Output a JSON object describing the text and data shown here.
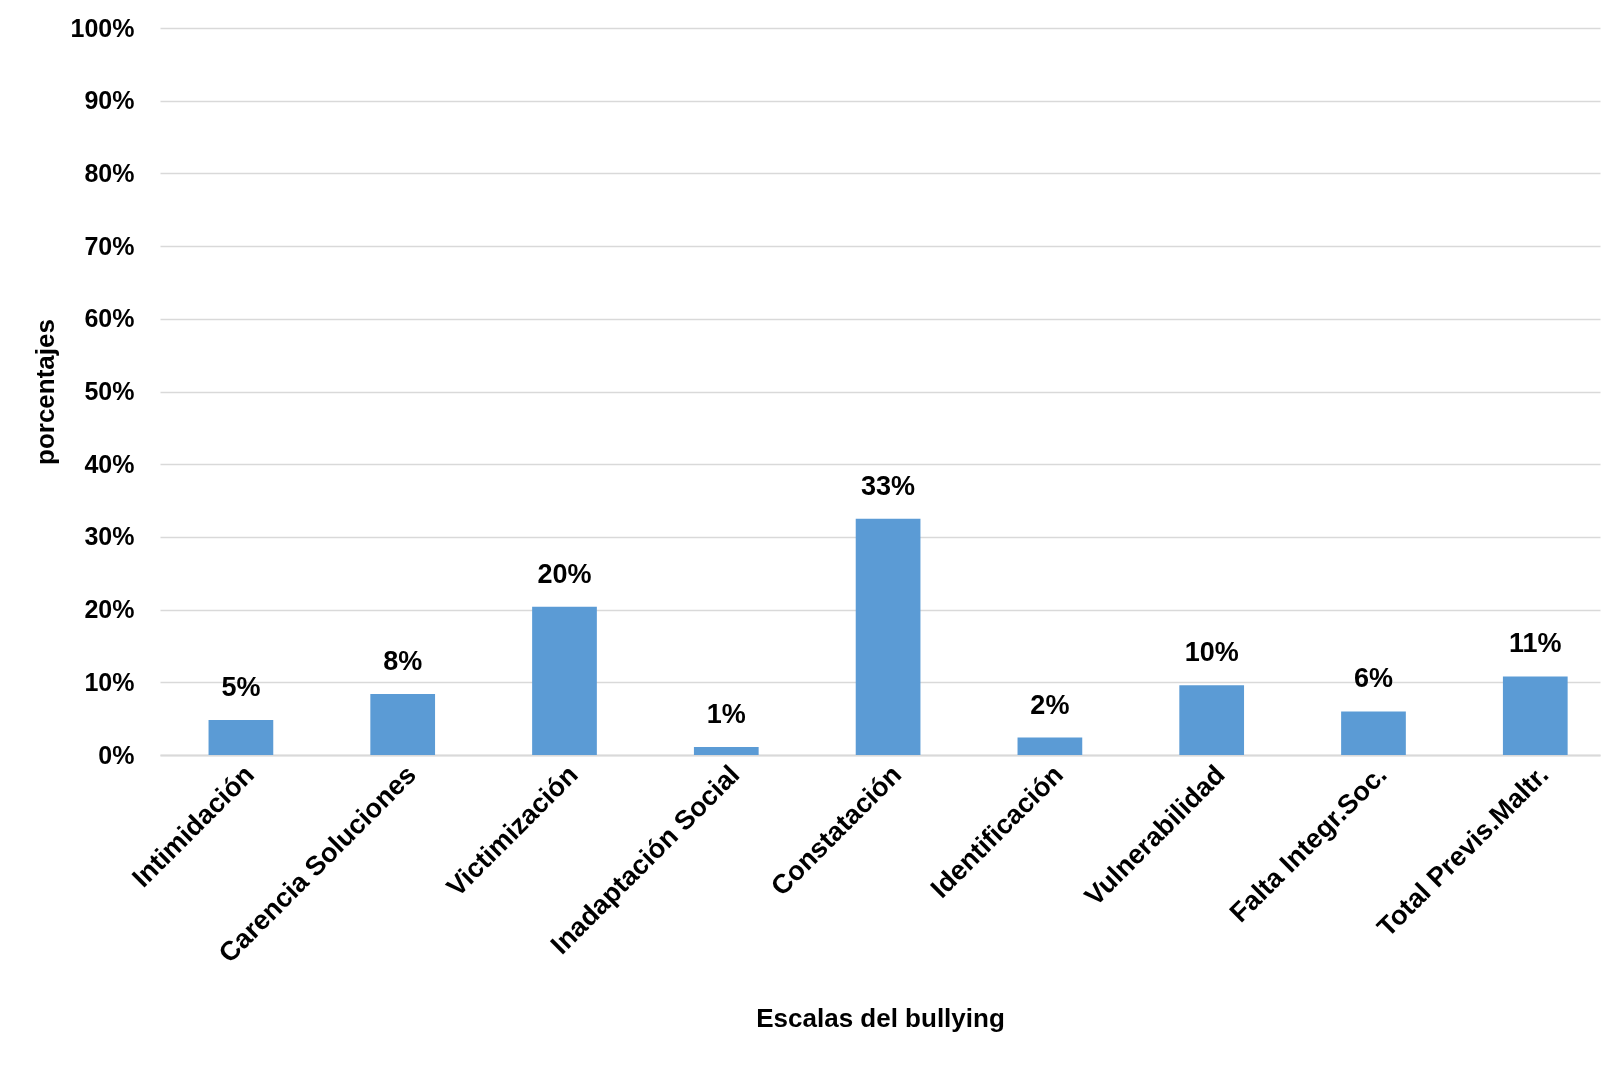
{
  "chart_data": {
    "type": "bar",
    "xlabel": "Escalas del bullying",
    "ylabel": "porcentajes",
    "categories": [
      "Intimidación",
      "Carencia Soluciones",
      "Victimización",
      "Inadaptación Social",
      "Constatación",
      "Identificación",
      "Vulnerabilidad",
      "Falta Integr.Soc.",
      "Total Previs.Maltr."
    ],
    "values": [
      4.8,
      8.4,
      20.4,
      1.1,
      32.5,
      2.4,
      9.6,
      6.0,
      10.8
    ],
    "value_labels": [
      "5%",
      "8%",
      "20%",
      "1%",
      "33%",
      "2%",
      "10%",
      "6%",
      "11%"
    ],
    "color": "#5b9bd5",
    "ylim": [
      0,
      100
    ],
    "yticks": [
      {
        "value": 0,
        "label": "0%"
      },
      {
        "value": 10,
        "label": "10%"
      },
      {
        "value": 20,
        "label": "20%"
      },
      {
        "value": 30,
        "label": "30%"
      },
      {
        "value": 40,
        "label": "40%"
      },
      {
        "value": 50,
        "label": "50%"
      },
      {
        "value": 60,
        "label": "60%"
      },
      {
        "value": 70,
        "label": "70%"
      },
      {
        "value": 80,
        "label": "80%"
      },
      {
        "value": 90,
        "label": "90%"
      },
      {
        "value": 100,
        "label": "100%"
      }
    ],
    "grid": "y"
  }
}
